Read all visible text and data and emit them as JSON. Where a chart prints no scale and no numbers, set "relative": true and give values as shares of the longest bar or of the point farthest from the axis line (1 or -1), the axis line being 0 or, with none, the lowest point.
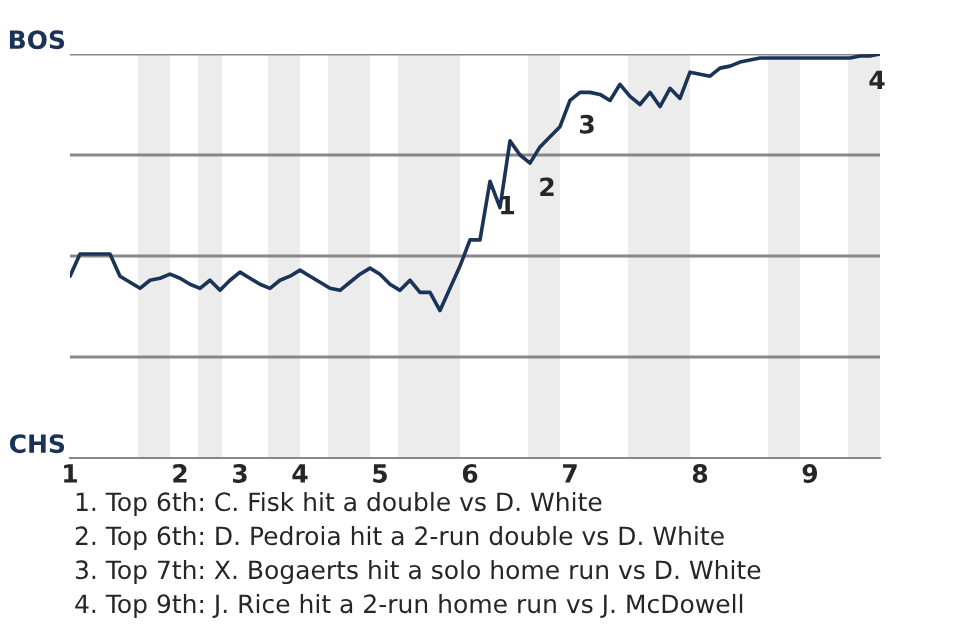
{
  "chart_data": {
    "type": "line",
    "relative": true,
    "categories": [
      "1",
      null,
      null,
      null,
      null,
      null,
      null,
      null,
      null,
      null,
      null,
      "2",
      null,
      null,
      null,
      null,
      null,
      "3",
      null,
      null,
      null,
      null,
      null,
      "4",
      null,
      null,
      null,
      null,
      null,
      null,
      null,
      "5",
      null,
      null,
      null,
      null,
      null,
      null,
      null,
      null,
      "6",
      null,
      null,
      null,
      null,
      null,
      null,
      null,
      null,
      null,
      "7",
      null,
      null,
      null,
      null,
      null,
      null,
      null,
      null,
      null,
      null,
      null,
      null,
      "8",
      null,
      null,
      null,
      null,
      null,
      null,
      null,
      null,
      null,
      null,
      "9",
      null,
      null,
      null,
      null,
      null,
      null,
      null
    ],
    "series": [
      {
        "color": "#1b3358",
        "values": [
          0.45,
          0.505,
          0.505,
          0.505,
          0.505,
          0.45,
          0.435,
          0.42,
          0.44,
          0.445,
          0.455,
          0.445,
          0.43,
          0.42,
          0.44,
          0.415,
          0.44,
          0.46,
          0.445,
          0.43,
          0.42,
          0.44,
          0.45,
          0.465,
          0.45,
          0.435,
          0.42,
          0.415,
          0.435,
          0.455,
          0.47,
          0.455,
          0.43,
          0.415,
          0.44,
          0.41,
          0.41,
          0.365,
          0.42,
          0.475,
          0.54,
          0.54,
          0.685,
          0.62,
          0.785,
          0.75,
          0.73,
          0.77,
          0.795,
          0.82,
          0.885,
          0.905,
          0.905,
          0.9,
          0.885,
          0.925,
          0.895,
          0.875,
          0.905,
          0.87,
          0.915,
          0.89,
          0.955,
          0.95,
          0.945,
          0.965,
          0.97,
          0.98,
          0.985,
          0.99,
          0.99,
          0.99,
          0.99,
          0.99,
          0.99,
          0.99,
          0.99,
          0.99,
          0.99,
          0.995,
          0.995,
          1
        ]
      }
    ],
    "legend": false,
    "marker": "none",
    "line_style": "solid",
    "ref_lines": [
      {
        "axis": "y",
        "value": 0.25,
        "color": "#888888"
      },
      {
        "axis": "y",
        "value": 0.5,
        "color": "#888888"
      },
      {
        "axis": "y",
        "value": 0.75,
        "color": "#888888"
      },
      {
        "axis": "y",
        "value": 1,
        "color": "#888888"
      }
    ],
    "annotations": [
      "BOS",
      "CHS",
      {
        "text": "1",
        "y": 0.685
      },
      {
        "text": "2",
        "y": 0.73
      },
      {
        "text": "3",
        "y": 0.885
      },
      {
        "text": "4",
        "y": 0.995
      },
      "1. Top 6th: C. Fisk hit a double vs D. White",
      "2. Top 6th: D. Pedroia hit a 2-run double vs D. White",
      "3. Top 7th: X. Bogaerts hit a solo home run vs D. White",
      "4. Top 9th: J. Rice hit a 2-run home run vs J. McDowell"
    ]
  }
}
